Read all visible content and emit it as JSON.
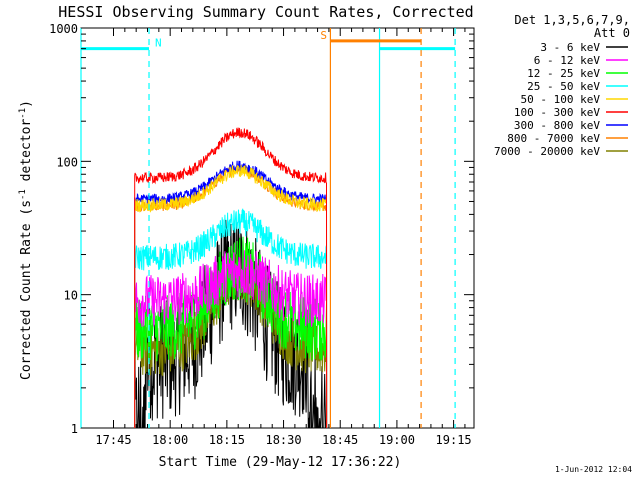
{
  "chart_data": {
    "type": "line",
    "title": "HESSI Observing Summary Count Rates, Corrected",
    "ylabel_main": "Corrected Count Rate (s",
    "ylabel_sup1": "-1",
    "ylabel_mid": " detector",
    "ylabel_sup2": "-1",
    "ylabel_end": ")",
    "xlabel": "Start Time (29-May-12 17:36:22)",
    "footer_date": "1-Jun-2012 12:04",
    "y_scale": "log",
    "ylim": [
      1,
      1000
    ],
    "xlim_minutes": [
      0,
      104
    ],
    "x_ticks": [
      {
        "label": "17:45",
        "t": 8.6
      },
      {
        "label": "18:00",
        "t": 23.6
      },
      {
        "label": "18:15",
        "t": 38.6
      },
      {
        "label": "18:30",
        "t": 53.6
      },
      {
        "label": "18:45",
        "t": 68.6
      },
      {
        "label": "19:00",
        "t": 83.6
      },
      {
        "label": "19:15",
        "t": 98.6
      }
    ],
    "y_ticks": [
      {
        "label": "1",
        "v": 1
      },
      {
        "label": "10",
        "v": 10
      },
      {
        "label": "100",
        "v": 100
      },
      {
        "label": "1000",
        "v": 1000
      }
    ],
    "legend_header": [
      "Det 1,3,5,6,7,9,",
      "Att 0"
    ],
    "legend_position": "right",
    "series": [
      {
        "name": "3 - 6 keV",
        "color": "#000000",
        "base": 3,
        "peak": 15,
        "noise": 0.45
      },
      {
        "name": "6 - 12 keV",
        "color": "#ff00ff",
        "base": 9,
        "peak": 15,
        "noise": 0.2
      },
      {
        "name": "12 - 25 keV",
        "color": "#00ff00",
        "base": 5.5,
        "peak": 16,
        "noise": 0.25
      },
      {
        "name": "25 - 50 keV",
        "color": "#00ffff",
        "base": 19,
        "peak": 35,
        "noise": 0.1
      },
      {
        "name": "50 - 100 keV",
        "color": "#ffd700",
        "base": 47,
        "peak": 85,
        "noise": 0.05
      },
      {
        "name": "100 - 300 keV",
        "color": "#ff0000",
        "base": 75,
        "peak": 165,
        "noise": 0.04
      },
      {
        "name": "300 - 800 keV",
        "color": "#0000ff",
        "base": 52,
        "peak": 93,
        "noise": 0.04
      },
      {
        "name": "800 - 7000 keV",
        "color": "#ff8000",
        "base": 46,
        "peak": 88,
        "noise": 0.04
      },
      {
        "name": "7000 - 20000 keV",
        "color": "#808000",
        "base": 3.8,
        "peak": 14,
        "noise": 0.2
      }
    ],
    "data_span_minutes": [
      14.2,
      65.0
    ],
    "peak_minute": 42.0,
    "flags": [
      {
        "label": "N",
        "color": "#00ffff",
        "level": 700,
        "from": 0,
        "to": 18.0,
        "dashed_at": 18.0
      },
      {
        "label": "S",
        "color": "#ff8000",
        "level": 800,
        "from": 66.0,
        "to": 90.0,
        "dashed_at": 90.0
      },
      {
        "label": "",
        "color": "#00ffff",
        "level": 700,
        "from": 79.0,
        "to": 99.0,
        "dashed_at": 99.0
      }
    ],
    "region_lines": [
      {
        "color": "#00ffff",
        "t": 0.0
      },
      {
        "color": "#ff8000",
        "t": 66.0
      },
      {
        "color": "#00ffff",
        "t": 79.0
      }
    ]
  }
}
